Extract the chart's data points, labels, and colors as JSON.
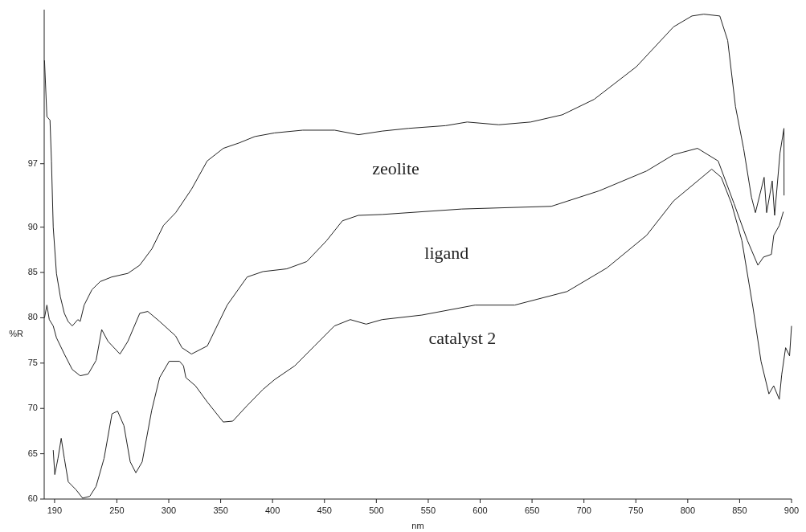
{
  "chart_data": {
    "type": "line",
    "xlabel": "nm",
    "ylabel": "%R",
    "xlim": [
      180,
      900
    ],
    "ylim": [
      60,
      114
    ],
    "xticks": [
      190,
      250,
      300,
      350,
      400,
      450,
      500,
      550,
      600,
      650,
      700,
      750,
      800,
      850,
      900
    ],
    "yticks": [
      60,
      65,
      70,
      75,
      80,
      85,
      90,
      97
    ],
    "grid": false,
    "legend": false,
    "marker": "none",
    "line_style": "solid",
    "series": [
      {
        "name": "zeolite",
        "color": "#222222",
        "x": [
          180.3,
          182.6,
          185.6,
          187,
          188.7,
          191.8,
          195.6,
          199.4,
          203,
          207,
          212.4,
          214.7,
          218.5,
          226,
          234,
          245,
          260.6,
          272,
          283.7,
          295,
          306.7,
          322,
          337,
          352.6,
          367.9,
          383,
          402,
          429,
          459.8,
          482.7,
          505.7,
          530.9,
          566.8,
          587.5,
          618,
          648.7,
          679.2,
          709.8,
          750.5,
          786.3,
          804,
          815.5,
          830.9,
          838.5,
          846,
          853.8,
          861.4,
          865.2,
          873.6,
          876,
          881.4,
          883.7,
          888.9,
          892.7,
          892.8
        ],
        "values": [
          108.4,
          102.2,
          101.8,
          97.3,
          90,
          84.9,
          82.3,
          80.5,
          79.6,
          79.1,
          79.8,
          79.6,
          81.4,
          83.1,
          84,
          84.5,
          84.9,
          85.8,
          87.6,
          90.2,
          91.6,
          94.2,
          97.3,
          98.7,
          99.3,
          100,
          100.4,
          100.7,
          100.7,
          100.2,
          100.6,
          100.9,
          101.2,
          101.6,
          101.3,
          101.6,
          102.4,
          104.1,
          107.7,
          112.1,
          113.3,
          113.5,
          113.3,
          110.6,
          103.3,
          98.7,
          93.3,
          91.6,
          95.5,
          91.6,
          95.1,
          91.3,
          98.2,
          100.9,
          93.5
        ]
      },
      {
        "name": "ligand",
        "color": "#222222",
        "x": [
          180.3,
          182.6,
          184.9,
          188.7,
          191.8,
          199.4,
          207,
          214.7,
          222.4,
          230,
          235.4,
          241.5,
          253,
          260.6,
          272.1,
          279.8,
          291.2,
          306.6,
          312.7,
          321.9,
          337.2,
          356.3,
          375.5,
          390.8,
          413.7,
          432.9,
          452,
          467.3,
          482.6,
          505.6,
          582.1,
          668.6,
          714.5,
          760.4,
          786.4,
          809.4,
          829.3,
          844.6,
          857.6,
          867.6,
          873,
          880.6,
          882.9,
          888.3,
          892.1
        ],
        "values": [
          80,
          81.4,
          79.8,
          79.1,
          77.8,
          76,
          74.3,
          73.6,
          73.8,
          75.3,
          78.7,
          77.4,
          76,
          77.4,
          80.5,
          80.7,
          79.6,
          78,
          76.7,
          76,
          76.9,
          81.4,
          84.5,
          85.1,
          85.4,
          86.2,
          88.5,
          90.7,
          91.3,
          91.4,
          92,
          92.3,
          94,
          96.2,
          98,
          98.7,
          97.3,
          92.6,
          88.5,
          85.8,
          86.7,
          87,
          89.1,
          90.2,
          91.7
        ]
      },
      {
        "name": "catalyst 2",
        "color": "#222222",
        "x": [
          188.7,
          190.2,
          193.3,
          196.4,
          199.4,
          203.2,
          210.9,
          217,
          223.9,
          230,
          237.7,
          245.3,
          250.7,
          256.8,
          262.9,
          268.3,
          274.4,
          283.6,
          291.2,
          300.4,
          310.4,
          314.2,
          316.5,
          325.7,
          337.2,
          352.5,
          361.7,
          375.4,
          390.8,
          402.2,
          421.4,
          440.5,
          459.6,
          474.9,
          490.2,
          505.5,
          543.8,
          595.1,
          633.3,
          683.8,
          722.1,
          760.4,
          786.4,
          811.6,
          823.1,
          832.3,
          842.2,
          852.2,
          862.9,
          870.6,
          878.2,
          882.8,
          888.2,
          890.5,
          894.3,
          898.1,
          900
        ],
        "values": [
          65.4,
          62.7,
          64.5,
          66.7,
          64.5,
          61.9,
          61,
          60.1,
          60.3,
          61.4,
          64.5,
          69.4,
          69.7,
          68.1,
          64.1,
          62.9,
          64.1,
          69.8,
          73.4,
          75.2,
          75.2,
          74.7,
          73.4,
          72.5,
          70.7,
          68.5,
          68.6,
          70.3,
          72.1,
          73.2,
          74.7,
          76.9,
          79.1,
          79.8,
          79.3,
          79.8,
          80.3,
          81.4,
          81.4,
          82.9,
          85.5,
          89.1,
          92.9,
          95.3,
          96.4,
          95.5,
          92.6,
          88.5,
          81.1,
          75.2,
          71.6,
          72.5,
          71,
          73.7,
          76.7,
          75.8,
          79.1
        ]
      }
    ]
  }
}
